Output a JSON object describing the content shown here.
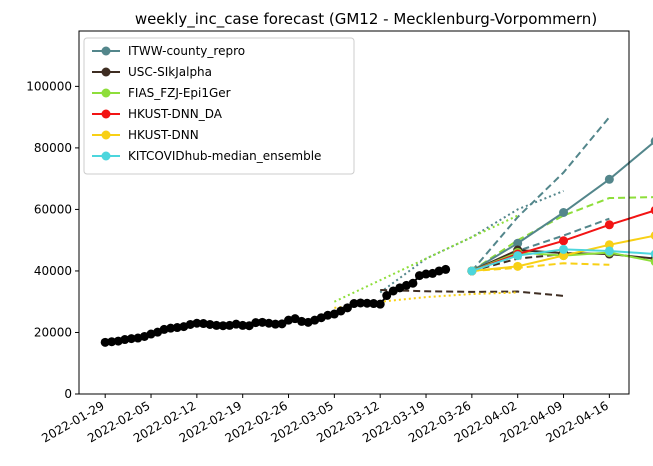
{
  "chart_data": {
    "type": "line",
    "title": "weekly_inc_case forecast (GM12 - Mecklenburg-Vorpommern)",
    "xlabel": "",
    "ylabel": "",
    "x_range": [
      "2022-01-25",
      "2022-04-19"
    ],
    "ylim": [
      0,
      118000
    ],
    "x_ticks": [
      "2022-01-29",
      "2022-02-05",
      "2022-02-12",
      "2022-02-19",
      "2022-02-26",
      "2022-03-05",
      "2022-03-12",
      "2022-03-19",
      "2022-03-26",
      "2022-04-02",
      "2022-04-09",
      "2022-04-16"
    ],
    "y_ticks": [
      0,
      20000,
      40000,
      60000,
      80000,
      100000
    ],
    "y_tick_labels": [
      "0",
      "20000",
      "40000",
      "60000",
      "80000",
      "100000"
    ],
    "grid": false,
    "legend_position": "top-left",
    "truth": {
      "color": "#000000",
      "points": [
        [
          "2022-01-29",
          16800
        ],
        [
          "2022-01-30",
          17000
        ],
        [
          "2022-01-31",
          17200
        ],
        [
          "2022-02-01",
          17700
        ],
        [
          "2022-02-02",
          18000
        ],
        [
          "2022-02-03",
          18200
        ],
        [
          "2022-02-04",
          18700
        ],
        [
          "2022-02-05",
          19500
        ],
        [
          "2022-02-06",
          20100
        ],
        [
          "2022-02-07",
          21000
        ],
        [
          "2022-02-08",
          21400
        ],
        [
          "2022-02-09",
          21600
        ],
        [
          "2022-02-10",
          21900
        ],
        [
          "2022-02-11",
          22600
        ],
        [
          "2022-02-12",
          23000
        ],
        [
          "2022-02-13",
          22900
        ],
        [
          "2022-02-14",
          22600
        ],
        [
          "2022-02-15",
          22300
        ],
        [
          "2022-02-16",
          22200
        ],
        [
          "2022-02-17",
          22300
        ],
        [
          "2022-02-18",
          22700
        ],
        [
          "2022-02-19",
          22300
        ],
        [
          "2022-02-20",
          22200
        ],
        [
          "2022-02-21",
          23200
        ],
        [
          "2022-02-22",
          23300
        ],
        [
          "2022-02-23",
          23000
        ],
        [
          "2022-02-24",
          22700
        ],
        [
          "2022-02-25",
          22800
        ],
        [
          "2022-02-26",
          24000
        ],
        [
          "2022-02-27",
          24500
        ],
        [
          "2022-02-28",
          23600
        ],
        [
          "2022-03-01",
          23300
        ],
        [
          "2022-03-02",
          24000
        ],
        [
          "2022-03-03",
          24800
        ],
        [
          "2022-03-04",
          25600
        ],
        [
          "2022-03-05",
          26000
        ],
        [
          "2022-03-06",
          27000
        ],
        [
          "2022-03-07",
          28000
        ],
        [
          "2022-03-08",
          29400
        ],
        [
          "2022-03-09",
          29600
        ],
        [
          "2022-03-10",
          29500
        ],
        [
          "2022-03-11",
          29400
        ],
        [
          "2022-03-12",
          29200
        ],
        [
          "2022-03-13",
          32000
        ],
        [
          "2022-03-14",
          33500
        ],
        [
          "2022-03-15",
          34500
        ],
        [
          "2022-03-16",
          35300
        ],
        [
          "2022-03-17",
          36000
        ],
        [
          "2022-03-18",
          38500
        ],
        [
          "2022-03-19",
          39000
        ],
        [
          "2022-03-20",
          39200
        ],
        [
          "2022-03-21",
          40000
        ],
        [
          "2022-03-22",
          40500
        ]
      ]
    },
    "series": [
      {
        "name": "ITWW-county_repro",
        "color": "#53868b",
        "points": [
          [
            "2022-03-26",
            40000
          ],
          [
            "2022-04-02",
            49000
          ],
          [
            "2022-04-09",
            59000
          ],
          [
            "2022-04-16",
            69800
          ],
          [
            "2022-04-23",
            82200
          ]
        ],
        "upper": [
          [
            "2022-03-26",
            40000
          ],
          [
            "2022-04-02",
            57500
          ],
          [
            "2022-04-09",
            72000
          ],
          [
            "2022-04-16",
            90000
          ]
        ],
        "lower": [
          [
            "2022-03-26",
            40000
          ],
          [
            "2022-04-02",
            46500
          ],
          [
            "2022-04-09",
            51500
          ],
          [
            "2022-04-16",
            57000
          ]
        ],
        "dotted": [
          [
            "2022-03-12",
            33000
          ],
          [
            "2022-03-19",
            44000
          ],
          [
            "2022-03-26",
            51000
          ],
          [
            "2022-04-02",
            60000
          ],
          [
            "2022-04-09",
            66000
          ]
        ]
      },
      {
        "name": "USC-SIkJalpha",
        "color": "#3e2d22",
        "points": [
          [
            "2022-03-26",
            40000
          ],
          [
            "2022-04-02",
            46800
          ],
          [
            "2022-04-09",
            45800
          ],
          [
            "2022-04-16",
            45500
          ],
          [
            "2022-04-23",
            44000
          ]
        ],
        "upper": [
          [
            "2022-03-26",
            40000
          ],
          [
            "2022-04-02",
            44000
          ],
          [
            "2022-04-09",
            45500
          ]
        ],
        "lower": [
          [
            "2022-03-12",
            33800
          ],
          [
            "2022-03-19",
            33400
          ],
          [
            "2022-03-26",
            33200
          ],
          [
            "2022-04-02",
            33300
          ],
          [
            "2022-04-09",
            31900
          ]
        ]
      },
      {
        "name": "FIAS_FZJ-Epi1Ger",
        "color": "#8ede3a",
        "points": [
          [
            "2022-03-26",
            40000
          ],
          [
            "2022-04-02",
            46000
          ],
          [
            "2022-04-09",
            45000
          ],
          [
            "2022-04-16",
            46000
          ],
          [
            "2022-04-23",
            43000
          ]
        ],
        "upper": [
          [
            "2022-03-26",
            40000
          ],
          [
            "2022-04-02",
            50000
          ],
          [
            "2022-04-09",
            58000
          ],
          [
            "2022-04-16",
            63700
          ],
          [
            "2022-04-23",
            64000
          ]
        ],
        "dotted": [
          [
            "2022-03-05",
            30000
          ],
          [
            "2022-03-12",
            37000
          ],
          [
            "2022-03-19",
            44000
          ],
          [
            "2022-03-26",
            51000
          ],
          [
            "2022-04-02",
            58000
          ]
        ]
      },
      {
        "name": "HKUST-DNN_DA",
        "color": "#f21414",
        "points": [
          [
            "2022-03-26",
            40000
          ],
          [
            "2022-04-02",
            45500
          ],
          [
            "2022-04-09",
            49800
          ],
          [
            "2022-04-16",
            55000
          ],
          [
            "2022-04-23",
            59700
          ]
        ]
      },
      {
        "name": "HKUST-DNN",
        "color": "#f8d015",
        "points": [
          [
            "2022-03-26",
            40000
          ],
          [
            "2022-04-02",
            41500
          ],
          [
            "2022-04-09",
            45000
          ],
          [
            "2022-04-16",
            48500
          ],
          [
            "2022-04-23",
            51500
          ]
        ],
        "lower": [
          [
            "2022-03-26",
            40000
          ],
          [
            "2022-04-02",
            41000
          ],
          [
            "2022-04-09",
            42500
          ],
          [
            "2022-04-16",
            42000
          ]
        ],
        "dotted": [
          [
            "2022-03-05",
            28000
          ],
          [
            "2022-03-12",
            30000
          ],
          [
            "2022-03-19",
            31500
          ],
          [
            "2022-03-26",
            32500
          ],
          [
            "2022-04-02",
            33000
          ]
        ]
      },
      {
        "name": "KITCOVIDhub-median_ensemble",
        "color": "#4cd6dd",
        "points": [
          [
            "2022-03-26",
            40000
          ],
          [
            "2022-04-02",
            45000
          ],
          [
            "2022-04-09",
            47000
          ],
          [
            "2022-04-16",
            46500
          ],
          [
            "2022-04-23",
            45500
          ]
        ]
      }
    ]
  }
}
